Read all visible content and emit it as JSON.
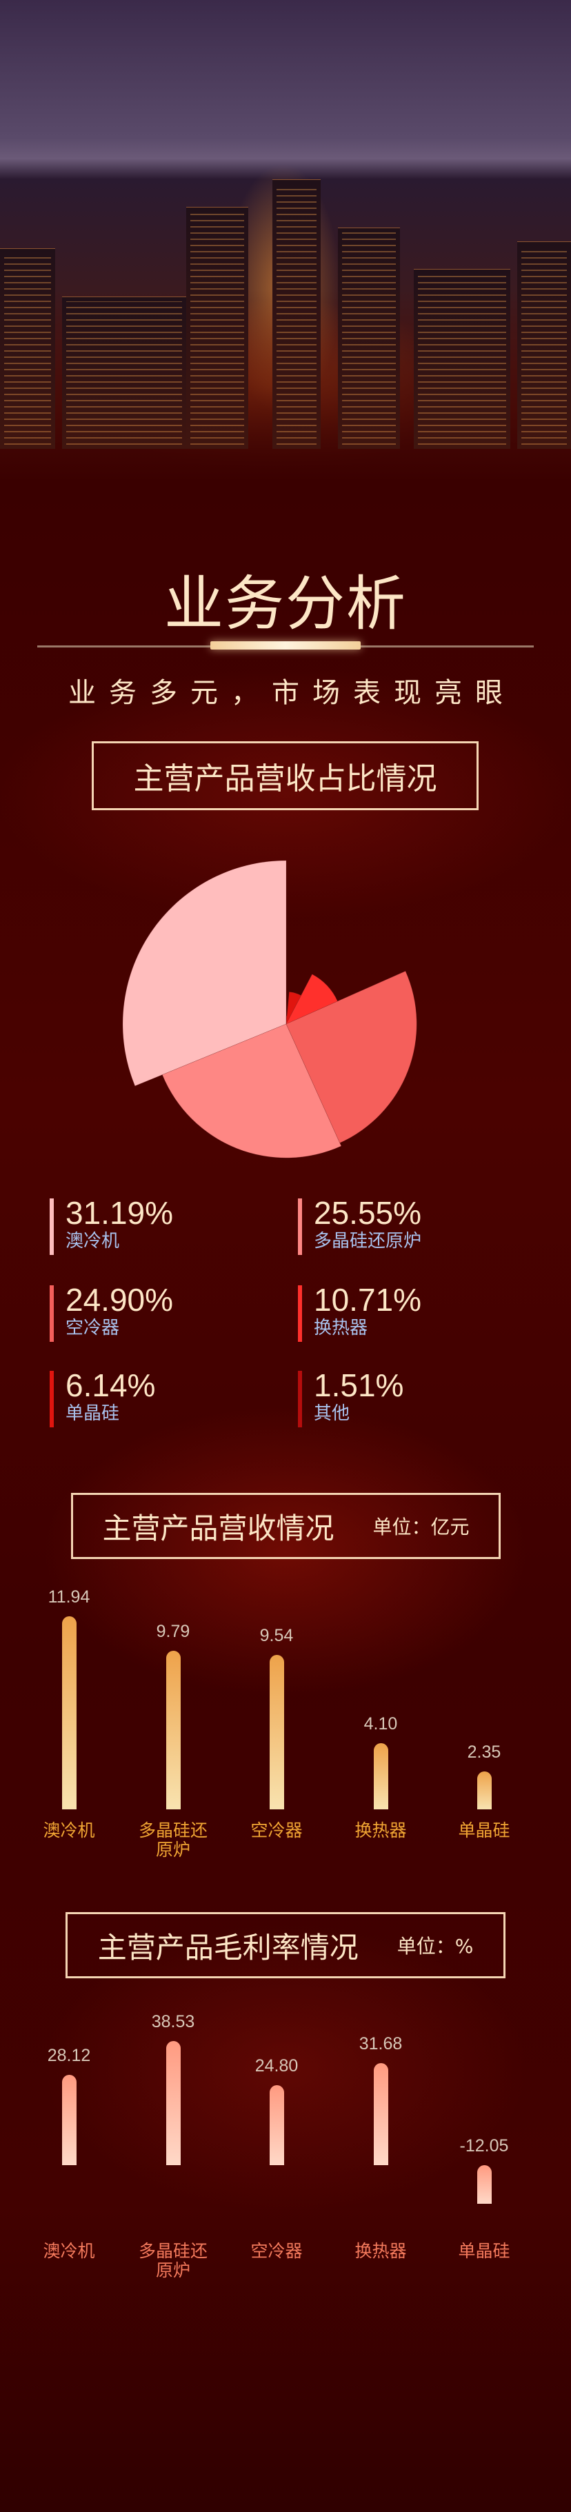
{
  "header": {
    "title": "业务分析",
    "subtitle": "业务多元，市场表现亮眼"
  },
  "sections": {
    "revenue_share": {
      "title": "主营产品营收占比情况"
    },
    "revenue": {
      "title": "主营产品营收情况",
      "unit": "单位：亿元"
    },
    "margin": {
      "title": "主营产品毛利率情况",
      "unit": "单位：%"
    }
  },
  "legend": [
    {
      "pct": "31.19%",
      "label": "澳冷机",
      "color": "#ffbdbd"
    },
    {
      "pct": "25.55%",
      "label": "多晶硅还原炉",
      "color": "#fe8784"
    },
    {
      "pct": "24.90%",
      "label": "空冷器",
      "color": "#f55f5b"
    },
    {
      "pct": "10.71%",
      "label": "换热器",
      "color": "#ff302c"
    },
    {
      "pct": "6.14%",
      "label": "单晶硅",
      "color": "#e0150f"
    },
    {
      "pct": "1.51%",
      "label": "其他",
      "color": "#b50d0d"
    }
  ],
  "chart_data": [
    {
      "type": "pie",
      "variant": "rose",
      "title": "主营产品营收占比情况",
      "categories": [
        "澳冷机",
        "多晶硅还原炉",
        "空冷器",
        "换热器",
        "单晶硅",
        "其他"
      ],
      "values": [
        31.19,
        25.55,
        24.9,
        10.71,
        6.14,
        1.51
      ],
      "colors": [
        "#ffbdbd",
        "#fe8784",
        "#f55f5b",
        "#ff302c",
        "#e0150f",
        "#b50d0d"
      ]
    },
    {
      "type": "bar",
      "title": "主营产品营收情况",
      "unit": "单位：亿元",
      "categories": [
        "澳冷机",
        "多晶硅还原炉",
        "空冷器",
        "换热器",
        "单晶硅"
      ],
      "values": [
        11.94,
        9.79,
        9.54,
        4.1,
        2.35
      ],
      "labels": [
        "11.94",
        "9.79",
        "9.54",
        "4.10",
        "2.35"
      ],
      "colors": {
        "top": "#eea24a",
        "bottom": "#f8e3b0",
        "category_text": "#f0a533"
      }
    },
    {
      "type": "bar",
      "title": "主营产品毛利率情况",
      "unit": "单位：%",
      "categories": [
        "澳冷机",
        "多晶硅还原炉",
        "空冷器",
        "换热器",
        "单晶硅"
      ],
      "values": [
        28.12,
        38.53,
        24.8,
        31.68,
        -12.05
      ],
      "labels": [
        "28.12",
        "38.53",
        "24.80",
        "31.68",
        "-12.05"
      ],
      "colors": {
        "top": "#ff9a80",
        "bottom": "#ffd9c8",
        "category_text": "#f47a5c"
      }
    }
  ]
}
